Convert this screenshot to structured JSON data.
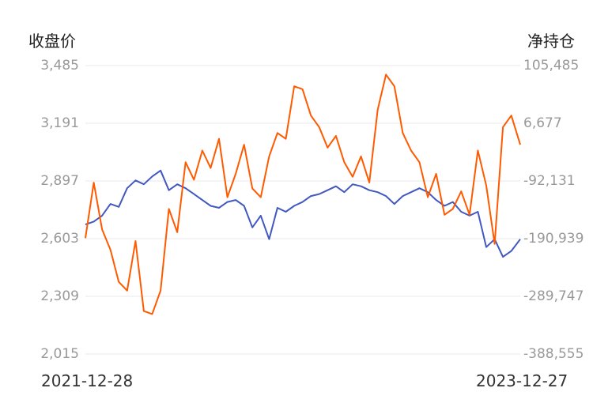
{
  "chart_data": {
    "type": "line",
    "y_left_title": "收盘价",
    "y_right_title": "净持仓",
    "y_left_ticks": [
      "3,485",
      "3,191",
      "2,897",
      "2,603",
      "2,309",
      "2,015"
    ],
    "y_right_ticks": [
      "105,485",
      "6,677",
      "-92,131",
      "-190,939",
      "-289,747",
      "-388,555"
    ],
    "x_start_label": "2021-12-28",
    "x_end_label": "2023-12-27",
    "y_left_range": [
      2015,
      3485
    ],
    "y_right_range": [
      -388555,
      105485
    ],
    "grid": true,
    "colors": {
      "close": "#4258c1",
      "net_position": "#ff5a00",
      "grid": "#e8e8ec",
      "tick": "#999999"
    },
    "series": [
      {
        "axis": "left",
        "color": "#4258c1",
        "x": [
          "2021-12-28",
          "2022-01-11",
          "2022-01-25",
          "2022-02-08",
          "2022-02-22",
          "2022-03-08",
          "2022-03-22",
          "2022-04-05",
          "2022-04-19",
          "2022-05-03",
          "2022-05-17",
          "2022-05-31",
          "2022-06-14",
          "2022-06-28",
          "2022-07-12",
          "2022-07-26",
          "2022-08-09",
          "2022-08-23",
          "2022-09-06",
          "2022-09-20",
          "2022-10-04",
          "2022-10-18",
          "2022-11-01",
          "2022-11-15",
          "2022-11-29",
          "2022-12-13",
          "2022-12-27",
          "2023-01-10",
          "2023-01-24",
          "2023-02-07",
          "2023-02-21",
          "2023-03-07",
          "2023-03-21",
          "2023-04-04",
          "2023-04-18",
          "2023-05-02",
          "2023-05-16",
          "2023-05-30",
          "2023-06-13",
          "2023-06-27",
          "2023-07-11",
          "2023-07-25",
          "2023-08-08",
          "2023-08-22",
          "2023-09-05",
          "2023-09-19",
          "2023-10-03",
          "2023-10-17",
          "2023-10-31",
          "2023-11-14",
          "2023-11-28",
          "2023-12-12",
          "2023-12-27"
        ],
        "values": [
          2675,
          2690,
          2720,
          2780,
          2765,
          2860,
          2900,
          2880,
          2920,
          2950,
          2850,
          2880,
          2860,
          2830,
          2800,
          2770,
          2760,
          2790,
          2800,
          2770,
          2660,
          2720,
          2600,
          2760,
          2740,
          2770,
          2790,
          2820,
          2830,
          2850,
          2870,
          2840,
          2880,
          2870,
          2850,
          2840,
          2820,
          2780,
          2820,
          2840,
          2860,
          2840,
          2800,
          2770,
          2790,
          2740,
          2720,
          2740,
          2560,
          2600,
          2510,
          2540,
          2600
        ]
      },
      {
        "axis": "right",
        "color": "#ff5a00",
        "x": [
          "2021-12-28",
          "2022-01-11",
          "2022-01-25",
          "2022-02-08",
          "2022-02-22",
          "2022-03-08",
          "2022-03-22",
          "2022-04-05",
          "2022-04-19",
          "2022-05-03",
          "2022-05-17",
          "2022-05-31",
          "2022-06-14",
          "2022-06-28",
          "2022-07-12",
          "2022-07-26",
          "2022-08-09",
          "2022-08-23",
          "2022-09-06",
          "2022-09-20",
          "2022-10-04",
          "2022-10-18",
          "2022-11-01",
          "2022-11-15",
          "2022-11-29",
          "2022-12-13",
          "2022-12-27",
          "2023-01-10",
          "2023-01-24",
          "2023-02-07",
          "2023-02-21",
          "2023-03-07",
          "2023-03-21",
          "2023-04-04",
          "2023-04-18",
          "2023-05-02",
          "2023-05-16",
          "2023-05-30",
          "2023-06-13",
          "2023-06-27",
          "2023-07-11",
          "2023-07-25",
          "2023-08-08",
          "2023-08-22",
          "2023-09-05",
          "2023-09-19",
          "2023-10-03",
          "2023-10-17",
          "2023-10-31",
          "2023-11-14",
          "2023-11-28",
          "2023-12-12",
          "2023-12-27"
        ],
        "values": [
          -190000,
          -95000,
          -175000,
          -210000,
          -265000,
          -280000,
          -195000,
          -315000,
          -320000,
          -280000,
          -140000,
          -180000,
          -60000,
          -90000,
          -40000,
          -70000,
          -20000,
          -120000,
          -80000,
          -30000,
          -105000,
          -120000,
          -50000,
          -10000,
          -20000,
          70000,
          65000,
          20000,
          0,
          -35000,
          -15000,
          -60000,
          -85000,
          -50000,
          -95000,
          30000,
          90000,
          70000,
          -10000,
          -40000,
          -60000,
          -120000,
          -80000,
          -150000,
          -140000,
          -110000,
          -150000,
          -40000,
          -100000,
          -200000,
          0,
          20000,
          -30000
        ]
      }
    ]
  }
}
